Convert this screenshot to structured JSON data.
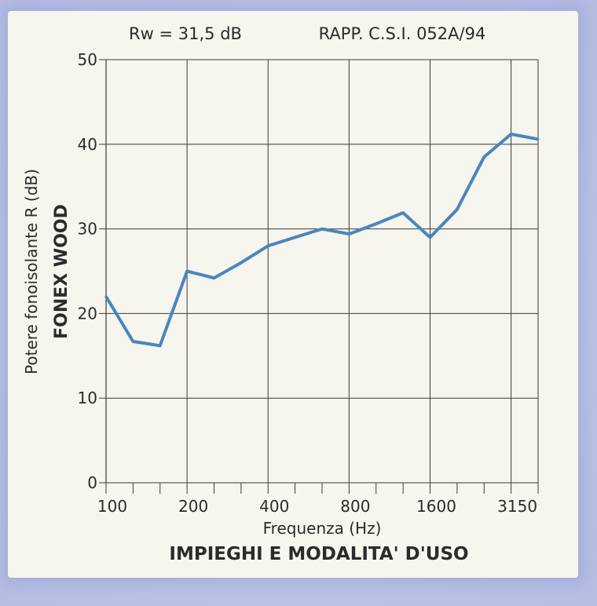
{
  "chart_data": {
    "type": "line",
    "header_left": "Rw = 31,5 dB",
    "header_right": "RAPP. C.S.I. 052A/94",
    "ylabel": "Potere fonoisolante R (dB)",
    "product_label": "FONEX WOOD",
    "xlabel": "Frequenza (Hz)",
    "caption": "IMPIEGHI E MODALITA' D'USO",
    "ylim": [
      0,
      50
    ],
    "yticks": [
      "0",
      "10",
      "20",
      "30",
      "40",
      "50"
    ],
    "xtick_labels": [
      "100",
      "200",
      "400",
      "800",
      "1600",
      "3150"
    ],
    "line_color": "#4a86bd",
    "series": [
      {
        "x": [
          100,
          125,
          160,
          200,
          250,
          315,
          400,
          500,
          630,
          800,
          1000,
          1250,
          1600,
          2000,
          2500,
          3150,
          4000
        ],
        "values": [
          22,
          16.7,
          16.2,
          25,
          24.2,
          26,
          28,
          29,
          30,
          29.4,
          30.6,
          31.9,
          29,
          32.3,
          38.5,
          41.2,
          40.6
        ]
      }
    ]
  }
}
